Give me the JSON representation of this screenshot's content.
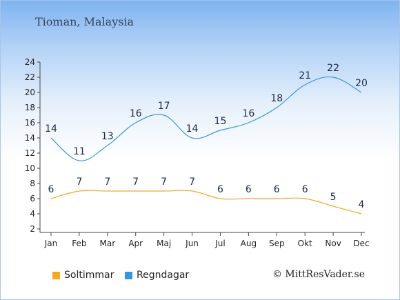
{
  "title": "Tioman, Malaysia",
  "copyright": "© MittResVader.se",
  "chart_data": {
    "type": "line",
    "categories": [
      "Jan",
      "Feb",
      "Mar",
      "Apr",
      "Maj",
      "Jun",
      "Jul",
      "Aug",
      "Sep",
      "Okt",
      "Nov",
      "Dec"
    ],
    "ylim": [
      2,
      24
    ],
    "yticks": [
      2,
      4,
      6,
      8,
      10,
      12,
      14,
      16,
      18,
      20,
      22,
      24
    ],
    "grid": false,
    "legend_position": "bottom-left",
    "series": [
      {
        "name": "Soltimmar",
        "color": "#f5a623",
        "values": [
          6,
          7,
          7,
          7,
          7,
          7,
          6,
          6,
          6,
          6,
          5,
          4
        ]
      },
      {
        "name": "Regndagar",
        "color": "#3b95dd",
        "values": [
          14,
          11,
          13,
          16,
          17,
          14,
          15,
          16,
          18,
          21,
          22,
          20
        ]
      }
    ]
  }
}
